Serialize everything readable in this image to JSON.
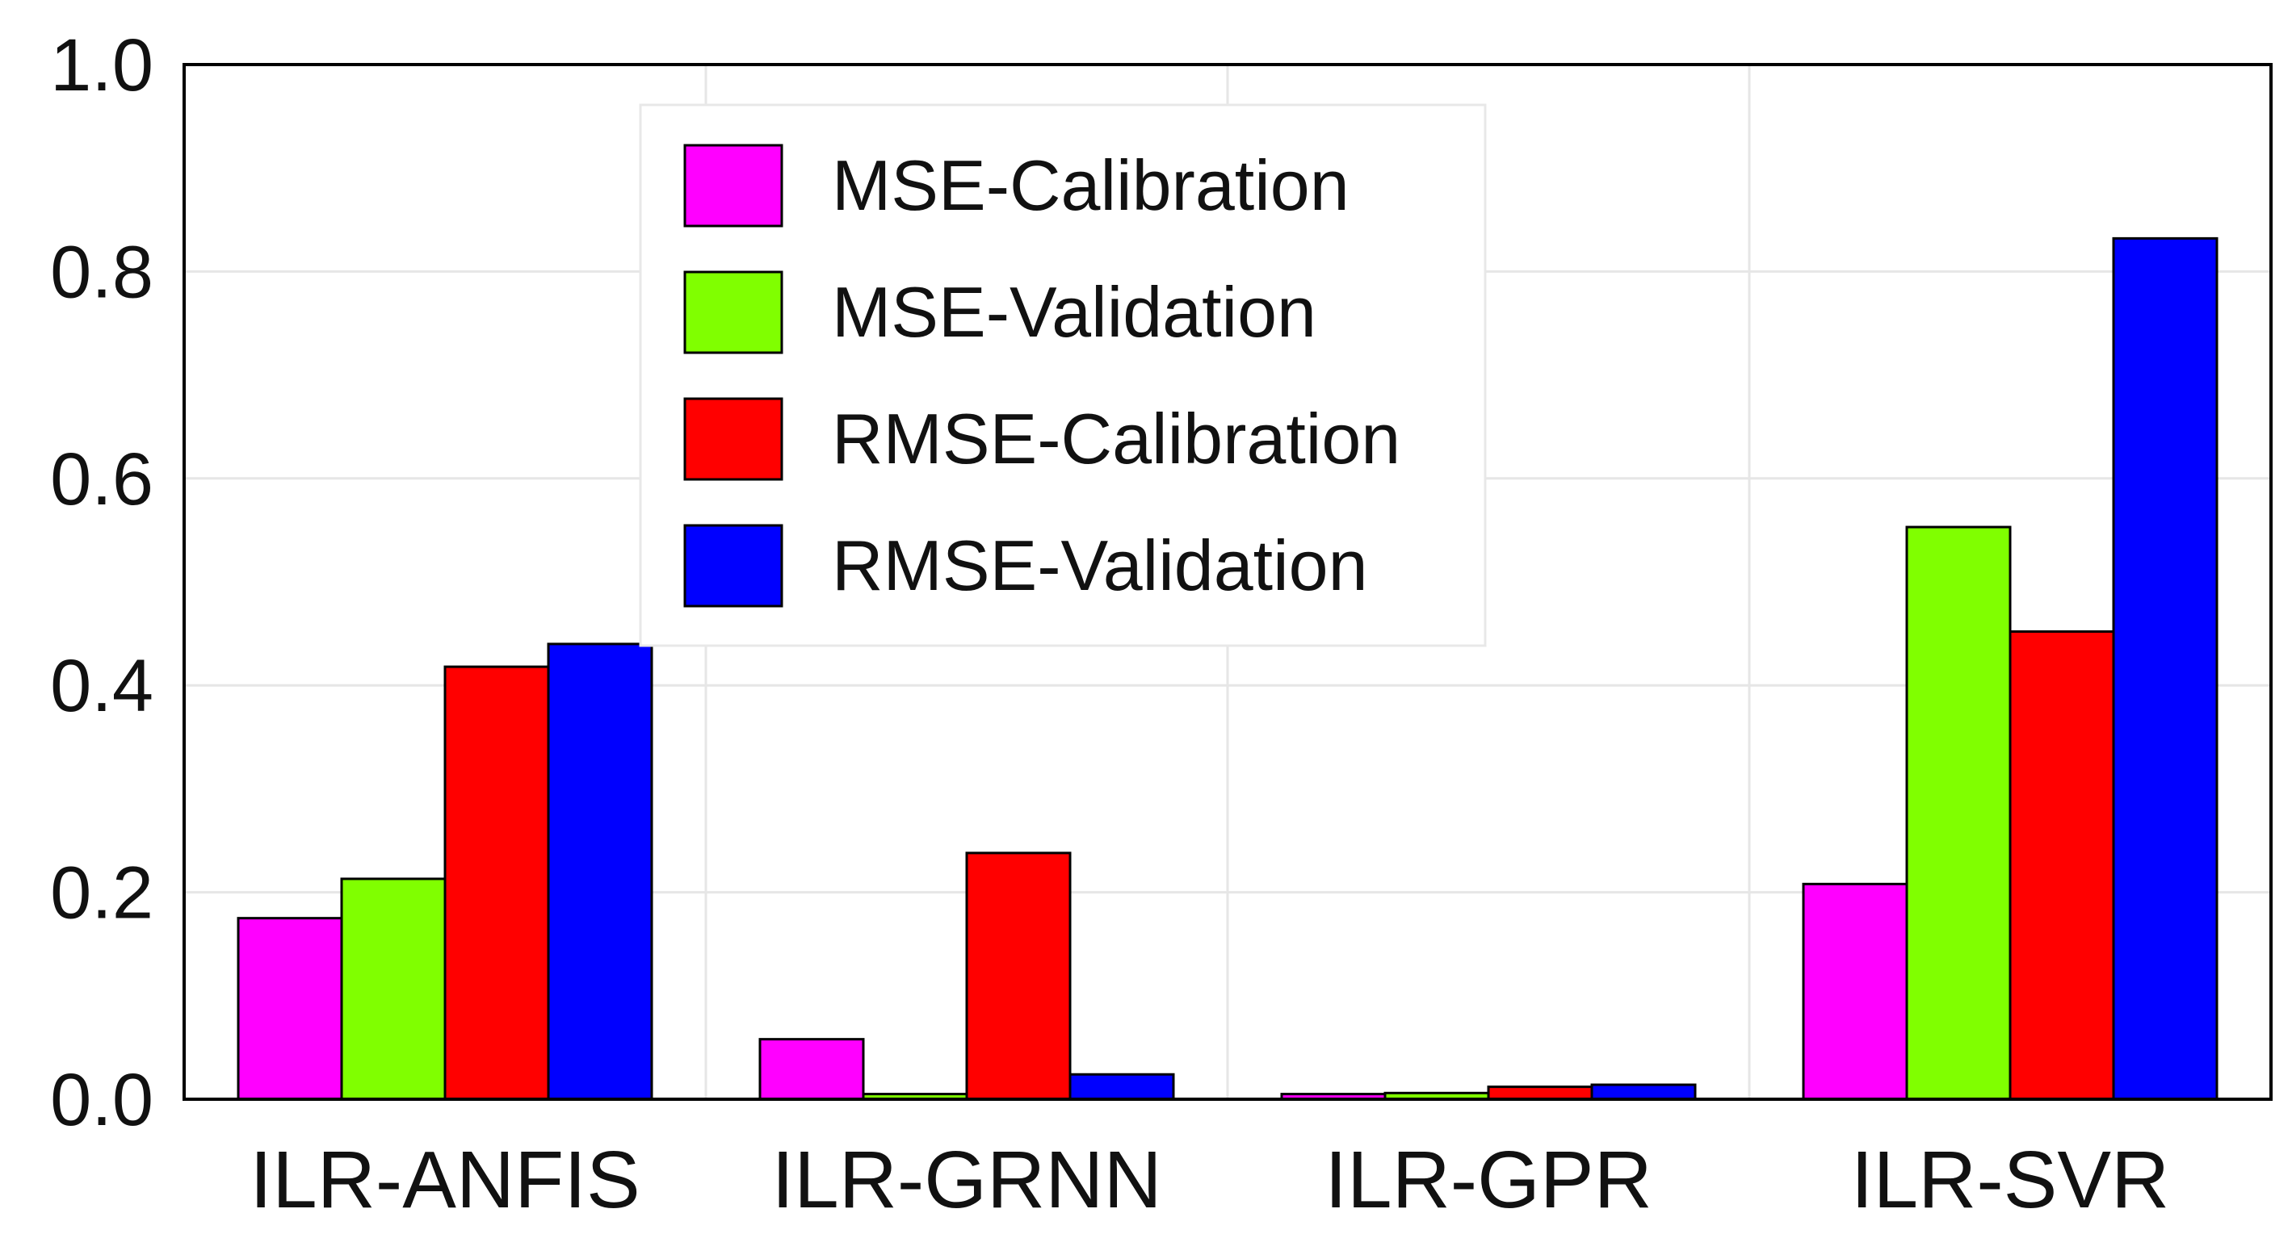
{
  "chart_data": {
    "type": "bar",
    "title": "",
    "xlabel": "",
    "ylabel": "",
    "categories": [
      "ILR-ANFIS",
      "ILR-GRNN",
      "ILR-GPR",
      "ILR-SVR"
    ],
    "series": [
      {
        "name": "MSE-Calibration",
        "color": "#ff00ff",
        "values": [
          0.175,
          0.058,
          0.005,
          0.208
        ]
      },
      {
        "name": "MSE-Validation",
        "color": "#80ff00",
        "values": [
          0.213,
          0.005,
          0.006,
          0.553
        ]
      },
      {
        "name": "RMSE-Calibration",
        "color": "#ff0000",
        "values": [
          0.418,
          0.238,
          0.012,
          0.452
        ]
      },
      {
        "name": "RMSE-Validation",
        "color": "#0000ff",
        "values": [
          0.44,
          0.024,
          0.014,
          0.832
        ]
      }
    ],
    "ylim": [
      0.0,
      1.0
    ],
    "yticks": [
      "0.0",
      "0.2",
      "0.4",
      "0.6",
      "0.8",
      "1.0"
    ],
    "grid": true,
    "legend_position": "top-center"
  }
}
